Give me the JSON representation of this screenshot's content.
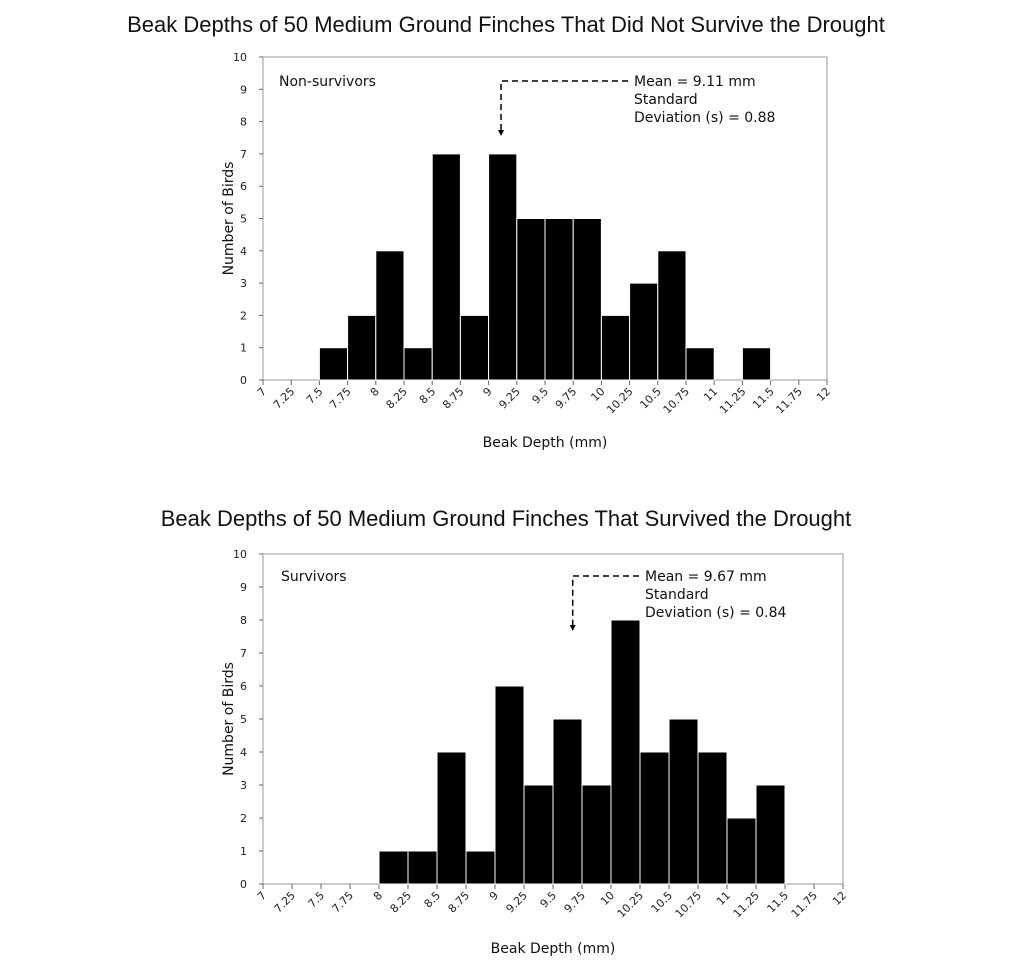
{
  "chart_data": [
    {
      "type": "bar",
      "title": "Beak Depths of 50 Medium Ground Finches That Did Not Survive the Drought",
      "panel_label": "Non-survivors",
      "xlabel": "Beak Depth (mm)",
      "ylabel": "Number of Birds",
      "ylim": [
        0,
        10
      ],
      "yticks": [
        "0",
        "1",
        "2",
        "3",
        "4",
        "5",
        "6",
        "7",
        "8",
        "9",
        "10"
      ],
      "xticks": [
        "7",
        "7.25",
        "7.5",
        "7.75",
        "8",
        "8.25",
        "8.5",
        "8.75",
        "9",
        "9.25",
        "9.5",
        "9.75",
        "10",
        "10.25",
        "10.5",
        "10.75",
        "11",
        "11.25",
        "11.5",
        "11.75",
        "12"
      ],
      "bins": [
        7,
        7.25,
        7.5,
        7.75,
        8,
        8.25,
        8.5,
        8.75,
        9,
        9.25,
        9.5,
        9.75,
        10,
        10.25,
        10.5,
        10.75,
        11,
        11.25,
        11.5,
        11.75
      ],
      "values": [
        0,
        0,
        1,
        2,
        4,
        1,
        7,
        2,
        7,
        5,
        5,
        5,
        2,
        3,
        4,
        1,
        0,
        1,
        0,
        0
      ],
      "mean_value": 9.11,
      "annotation": [
        "Mean = 9.11 mm",
        "Standard",
        "Deviation (s) = 0.88"
      ]
    },
    {
      "type": "bar",
      "title": "Beak Depths of 50 Medium Ground Finches That Survived the Drought",
      "panel_label": "Survivors",
      "xlabel": "Beak Depth (mm)",
      "ylabel": "Number of Birds",
      "ylim": [
        0,
        10
      ],
      "yticks": [
        "0",
        "1",
        "2",
        "3",
        "4",
        "5",
        "6",
        "7",
        "8",
        "9",
        "10"
      ],
      "xticks": [
        "7",
        "7.25",
        "7.5",
        "7.75",
        "8",
        "8.25",
        "8.5",
        "8.75",
        "9",
        "9.25",
        "9.5",
        "9.75",
        "10",
        "10.25",
        "10.5",
        "10.75",
        "11",
        "11.25",
        "11.5",
        "11.75",
        "12"
      ],
      "bins": [
        7,
        7.25,
        7.5,
        7.75,
        8,
        8.25,
        8.5,
        8.75,
        9,
        9.25,
        9.5,
        9.75,
        10,
        10.25,
        10.5,
        10.75,
        11,
        11.25,
        11.5,
        11.75
      ],
      "values": [
        0,
        0,
        0,
        0,
        1,
        1,
        4,
        1,
        6,
        3,
        5,
        3,
        8,
        4,
        5,
        4,
        2,
        3,
        0,
        0
      ],
      "mean_value": 9.67,
      "annotation": [
        "Mean = 9.67 mm",
        "Standard",
        "Deviation (s) = 0.84"
      ]
    }
  ]
}
